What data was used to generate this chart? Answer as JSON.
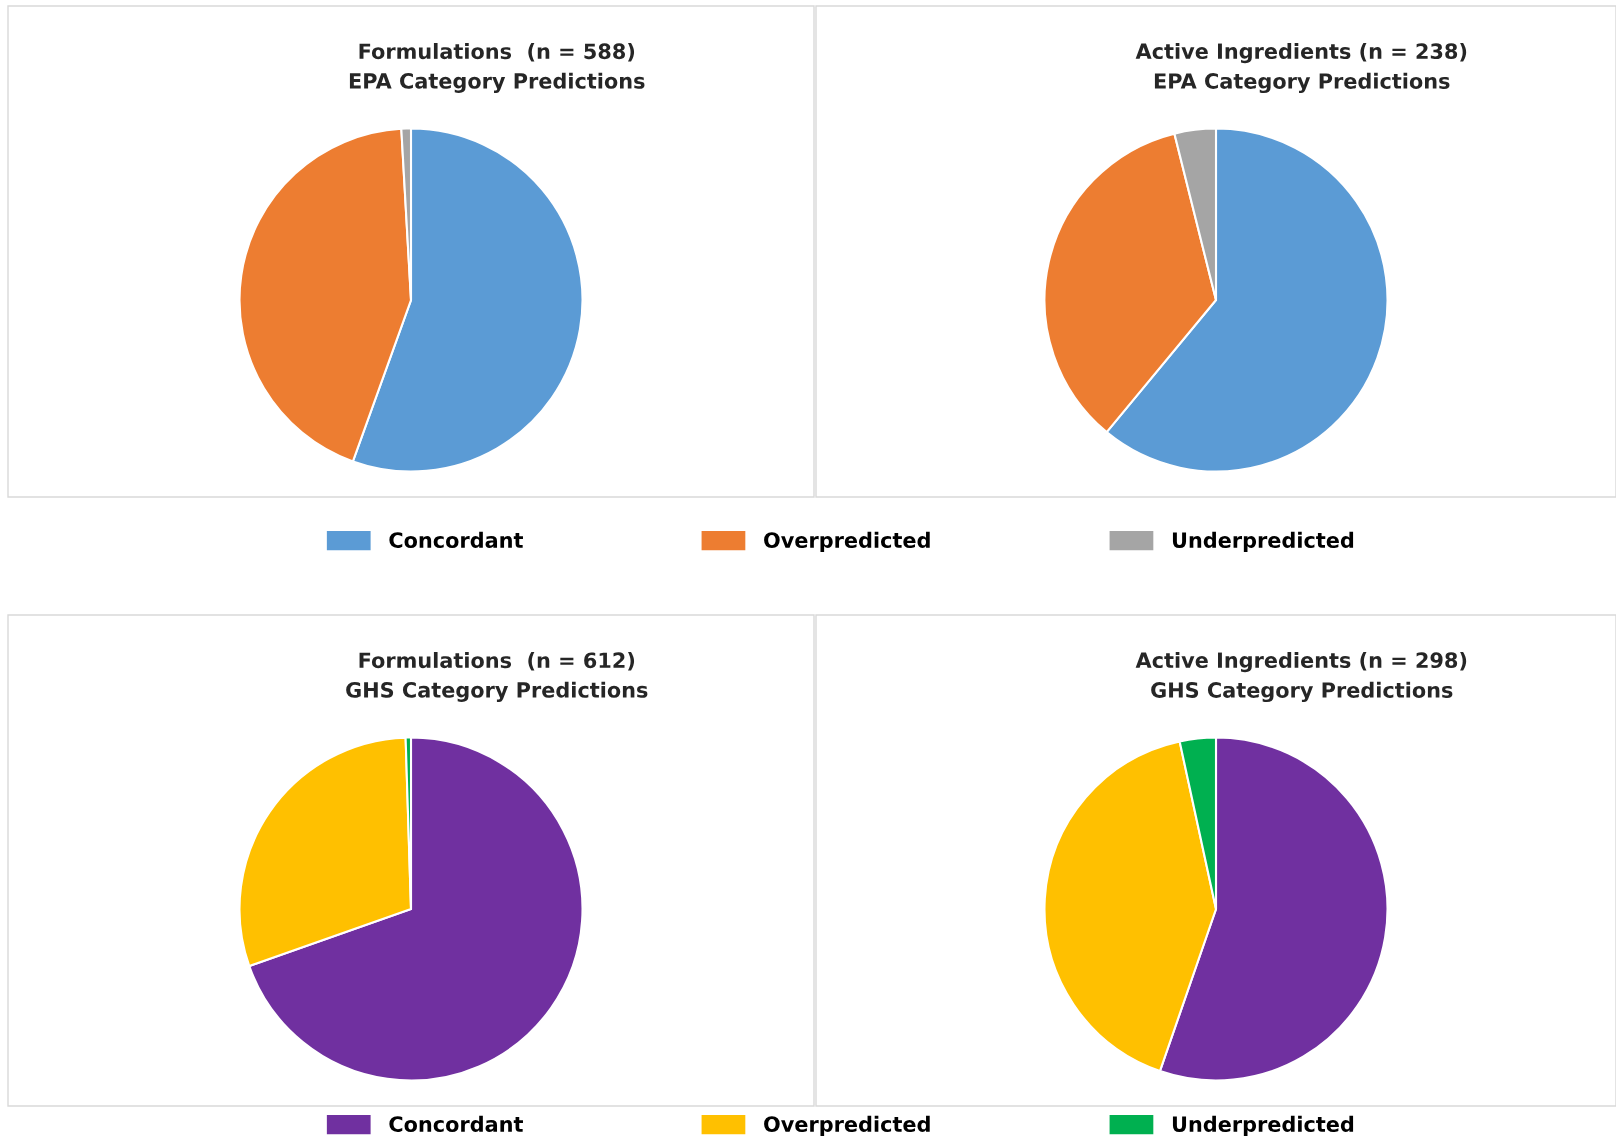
{
  "chart_data": [
    {
      "type": "pie",
      "title": "Formulations  (n = 588)\nEPA Category Predictions",
      "categories": [
        "Concordant",
        "Overpredicted",
        "Underpredicted"
      ],
      "values": [
        55.5,
        43.6,
        0.9
      ],
      "colors": [
        "#5b9bd5",
        "#ed7d31",
        "#a5a5a5"
      ],
      "legend": "bottom"
    },
    {
      "type": "pie",
      "title": "Active Ingredients (n = 238)\nEPA Category Predictions",
      "categories": [
        null,
        null,
        null
      ],
      "values": [
        61.0,
        35.1,
        3.9
      ],
      "colors": [
        "#5b9bd5",
        "#ed7d31",
        "#a5a5a5"
      ]
    },
    {
      "type": "pie",
      "title": "Formulations  (n = 612)\nGHS Category Predictions",
      "categories": [
        "Concordant",
        "Overpredicted",
        "Underpredicted"
      ],
      "values": [
        69.6,
        29.9,
        0.5
      ],
      "colors": [
        "#7030a0",
        "#ffc000",
        "#00b050"
      ],
      "legend": "bottom"
    },
    {
      "type": "pie",
      "title": "Active Ingredients (n = 298)\nGHS Category Predictions",
      "categories": [
        null,
        null,
        null
      ],
      "values": [
        55.3,
        41.3,
        3.4
      ],
      "colors": [
        "#7030a0",
        "#ffc000",
        "#00b050"
      ]
    }
  ]
}
